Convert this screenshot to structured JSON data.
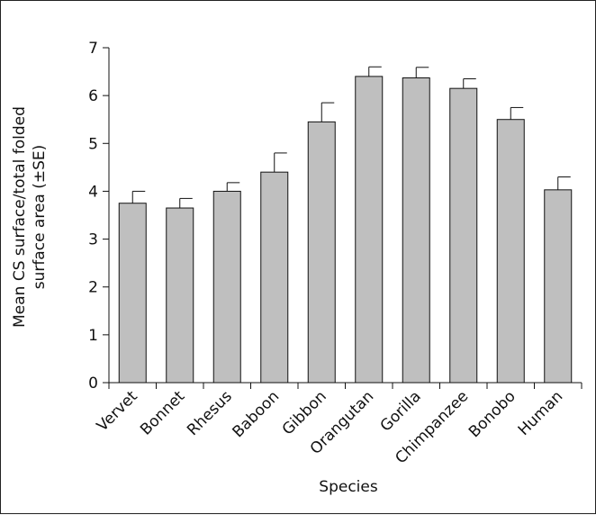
{
  "chart_data": {
    "type": "bar",
    "categories": [
      "Vervet",
      "Bonnet",
      "Rhesus",
      "Baboon",
      "Gibbon",
      "Orangutan",
      "Gorilla",
      "Chimpanzee",
      "Bonobo",
      "Human"
    ],
    "values": [
      3.75,
      3.65,
      4.0,
      4.4,
      5.45,
      6.4,
      6.37,
      6.15,
      5.5,
      4.03
    ],
    "errors": [
      0.25,
      0.2,
      0.18,
      0.4,
      0.4,
      0.2,
      0.22,
      0.2,
      0.25,
      0.27
    ],
    "xlabel": "Species",
    "ylabel_line1": "Mean CS surface/total folded",
    "ylabel_line2": "surface area (±SE)",
    "ylim": [
      0,
      7
    ],
    "yticks": [
      "0",
      "1",
      "2",
      "3",
      "4",
      "5",
      "6",
      "7"
    ],
    "bar_color": "#bfbfbf",
    "grid": false
  }
}
